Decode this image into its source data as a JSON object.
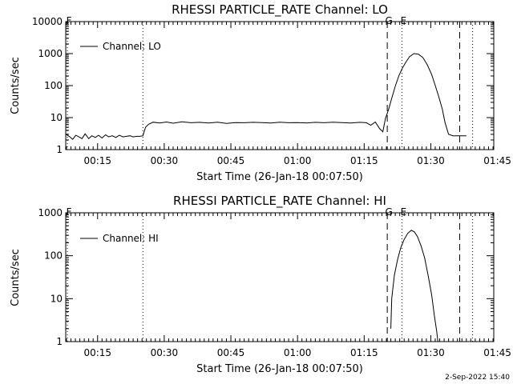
{
  "footer": {
    "date_stamp": "2-Sep-2022 15:40"
  },
  "chart_data": [
    {
      "type": "line",
      "title": "RHESSI PARTICLE_RATE Channel: LO",
      "xlabel": "Start Time (26-Jan-18 00:07:50)",
      "ylabel": "Counts/sec",
      "yscale": "log",
      "ylim": [
        1,
        10000
      ],
      "xlim_minutes": [
        7.83,
        104.17
      ],
      "y_ticks": [
        {
          "v": 1,
          "label": "1"
        },
        {
          "v": 10,
          "label": "10"
        },
        {
          "v": 100,
          "label": "100"
        },
        {
          "v": 1000,
          "label": "1000"
        },
        {
          "v": 10000,
          "label": "10000"
        }
      ],
      "x_ticks": [
        {
          "t": 15,
          "label": "00:15"
        },
        {
          "t": 30,
          "label": "00:30"
        },
        {
          "t": 45,
          "label": "00:45"
        },
        {
          "t": 60,
          "label": "01:00"
        },
        {
          "t": 75,
          "label": "01:15"
        },
        {
          "t": 90,
          "label": "01:30"
        },
        {
          "t": 105,
          "label": "01:45"
        }
      ],
      "legend": {
        "label": "Channel: LO",
        "position": "top-left"
      },
      "markers": [
        {
          "t": 8.2,
          "label": "F",
          "style": "dotted"
        },
        {
          "t": 25.2,
          "label": "",
          "style": "dotted"
        },
        {
          "t": 80.2,
          "label": "G",
          "style": "dashed"
        },
        {
          "t": 83.5,
          "label": "E",
          "style": "dotted"
        },
        {
          "t": 96.5,
          "label": "",
          "style": "dashed"
        },
        {
          "t": 99.4,
          "label": "",
          "style": "dotted"
        }
      ],
      "series": [
        {
          "x": [
            7.9,
            8.6,
            9.4,
            10.1,
            10.8,
            11.5,
            12.2,
            13,
            13.7,
            14.5,
            15.2,
            16,
            16.8,
            17.5,
            18.3,
            19.1,
            19.9,
            20.7,
            21.5,
            22.3,
            23,
            23.8,
            24.5,
            25.2,
            25.8,
            26.5,
            27.5,
            29,
            30.5,
            32,
            34,
            36,
            38,
            40,
            42,
            44,
            46,
            48,
            50,
            52,
            54,
            56,
            58,
            60,
            62,
            64,
            66,
            68,
            70,
            72,
            74,
            75.5,
            76.5,
            77.5,
            78.5,
            79.2,
            79.8,
            80.5,
            81.2,
            82,
            82.8,
            83.5,
            84.3,
            85.2,
            86.2,
            87.2,
            88.2,
            89.2,
            90.2,
            91,
            91.8,
            92.6,
            93.2,
            94,
            95,
            96,
            97,
            98
          ],
          "y": [
            3,
            2.6,
            2.1,
            2.8,
            2.5,
            2.2,
            3.1,
            2.2,
            2.7,
            2.4,
            2.8,
            2.3,
            2.9,
            2.5,
            2.7,
            2.4,
            2.8,
            2.5,
            2.6,
            2.7,
            2.5,
            2.6,
            2.6,
            2.7,
            5,
            6.2,
            7.2,
            6.8,
            7.3,
            6.7,
            7.4,
            6.9,
            7.1,
            6.8,
            7.2,
            6.6,
            7.0,
            6.9,
            7.1,
            7.0,
            6.8,
            7.2,
            6.9,
            7.0,
            6.8,
            7.1,
            6.9,
            7.2,
            7.0,
            6.8,
            7.1,
            6.9,
            5.8,
            7.3,
            4.5,
            3.6,
            9.5,
            18,
            40,
            95,
            200,
            330,
            520,
            800,
            1000,
            960,
            760,
            450,
            220,
            100,
            45,
            18,
            7,
            3,
            2.7,
            2.7,
            2.7,
            2.7
          ]
        }
      ]
    },
    {
      "type": "line",
      "title": "RHESSI PARTICLE_RATE Channel: HI",
      "xlabel": "Start Time (26-Jan-18 00:07:50)",
      "ylabel": "Counts/sec",
      "yscale": "log",
      "ylim": [
        1,
        1000
      ],
      "xlim_minutes": [
        7.83,
        104.17
      ],
      "y_ticks": [
        {
          "v": 1,
          "label": "1"
        },
        {
          "v": 10,
          "label": "10"
        },
        {
          "v": 100,
          "label": "100"
        },
        {
          "v": 1000,
          "label": "1000"
        }
      ],
      "x_ticks": [
        {
          "t": 15,
          "label": "00:15"
        },
        {
          "t": 30,
          "label": "00:30"
        },
        {
          "t": 45,
          "label": "00:45"
        },
        {
          "t": 60,
          "label": "01:00"
        },
        {
          "t": 75,
          "label": "01:15"
        },
        {
          "t": 90,
          "label": "01:30"
        },
        {
          "t": 105,
          "label": "01:45"
        }
      ],
      "legend": {
        "label": "Channel: HI",
        "position": "top-left"
      },
      "markers": [
        {
          "t": 8.2,
          "label": "F",
          "style": "dotted"
        },
        {
          "t": 25.2,
          "label": "",
          "style": "dotted"
        },
        {
          "t": 80.2,
          "label": "G",
          "style": "dashed"
        },
        {
          "t": 83.5,
          "label": "E",
          "style": "dotted"
        },
        {
          "t": 96.5,
          "label": "",
          "style": "dashed"
        },
        {
          "t": 99.4,
          "label": "",
          "style": "dotted"
        }
      ],
      "series": [
        {
          "x": [
            81,
            81.2,
            81.8,
            82.5,
            83.2,
            84,
            84.8,
            85.6,
            86.3,
            87,
            87.8,
            88.6,
            89.4,
            90.2,
            90.8,
            91.3,
            91.6
          ],
          "y": [
            2,
            10,
            35,
            80,
            150,
            240,
            330,
            390,
            360,
            280,
            170,
            90,
            35,
            12,
            4,
            1.8,
            1
          ]
        }
      ]
    }
  ]
}
